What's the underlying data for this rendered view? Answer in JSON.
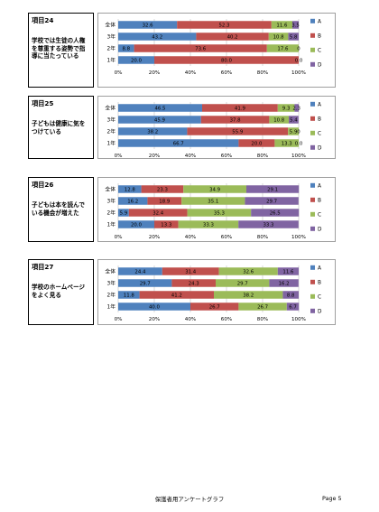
{
  "colors": {
    "A": "#4f81bd",
    "B": "#c0504d",
    "C": "#9bbb59",
    "D": "#8064a2"
  },
  "footer": {
    "title": "保護者用アンケートグラフ",
    "page": "Page 5"
  },
  "items": [
    {
      "title": "項目24",
      "text": "学校では生徒の人権を尊重する姿勢で指導に当たっている",
      "chart_data": {
        "type": "bar",
        "orientation": "horizontal",
        "stacked": "percent",
        "categories": [
          "全体",
          "3年",
          "2年",
          "1年"
        ],
        "series": [
          {
            "name": "A",
            "values": [
              32.6,
              43.2,
              8.8,
              20.0
            ]
          },
          {
            "name": "B",
            "values": [
              52.3,
              40.2,
              73.6,
              80.0
            ]
          },
          {
            "name": "C",
            "values": [
              11.6,
              10.8,
              17.6,
              0
            ]
          },
          {
            "name": "D",
            "values": [
              3.5,
              5.8,
              0,
              0
            ]
          }
        ],
        "labels": [
          [
            "32.6",
            "52.3",
            "11.6",
            "3.5"
          ],
          [
            "43.2",
            "40.2",
            "10.8",
            "5.8"
          ],
          [
            "8.8",
            "73.6",
            "17.6",
            "0"
          ],
          [
            "20.0",
            "80.0",
            "",
            "0.0"
          ]
        ],
        "xticks": [
          "0%",
          "20%",
          "40%",
          "60%",
          "80%",
          "100%"
        ],
        "xlim": [
          0,
          100
        ],
        "legend": "right"
      }
    },
    {
      "title": "項目25",
      "text": "子どもは健康に気をつけている",
      "chart_data": {
        "type": "bar",
        "orientation": "horizontal",
        "stacked": "percent",
        "categories": [
          "全体",
          "3年",
          "2年",
          "1年"
        ],
        "series": [
          {
            "name": "A",
            "values": [
              46.5,
              45.9,
              38.2,
              66.7
            ]
          },
          {
            "name": "B",
            "values": [
              41.9,
              37.8,
              55.9,
              20.0
            ]
          },
          {
            "name": "C",
            "values": [
              9.3,
              10.8,
              5.9,
              13.3
            ]
          },
          {
            "name": "D",
            "values": [
              2.3,
              5.4,
              0,
              0
            ]
          }
        ],
        "labels": [
          [
            "46.5",
            "41.9",
            "9.3",
            "2.3"
          ],
          [
            "45.9",
            "37.8",
            "10.8",
            "5.4"
          ],
          [
            "38.2",
            "55.9",
            "5.9",
            "0"
          ],
          [
            "66.7",
            "20.0",
            "13.3",
            "0.0"
          ]
        ],
        "xticks": [
          "0%",
          "20%",
          "40%",
          "60%",
          "80%",
          "100%"
        ],
        "xlim": [
          0,
          100
        ],
        "legend": "right"
      }
    },
    {
      "title": "項目26",
      "text": "子どもは本を読んでいる機会が増えた",
      "chart_data": {
        "type": "bar",
        "orientation": "horizontal",
        "stacked": "percent",
        "categories": [
          "全体",
          "3年",
          "2年",
          "1年"
        ],
        "series": [
          {
            "name": "A",
            "values": [
              12.8,
              16.2,
              5.9,
              20.0
            ]
          },
          {
            "name": "B",
            "values": [
              23.3,
              18.9,
              32.4,
              13.3
            ]
          },
          {
            "name": "C",
            "values": [
              34.9,
              35.1,
              35.3,
              33.3
            ]
          },
          {
            "name": "D",
            "values": [
              29.1,
              29.7,
              26.5,
              33.3
            ]
          }
        ],
        "labels": [
          [
            "12.8",
            "23.3",
            "34.9",
            "29.1"
          ],
          [
            "16.2",
            "18.9",
            "35.1",
            "29.7"
          ],
          [
            "5.9",
            "32.4",
            "35.3",
            "26.5"
          ],
          [
            "20.0",
            "13.3",
            "33.3",
            "33.3"
          ]
        ],
        "xticks": [
          "0%",
          "20%",
          "40%",
          "60%",
          "80%",
          "100%"
        ],
        "xlim": [
          0,
          100
        ],
        "legend": "right"
      }
    },
    {
      "title": "項目27",
      "text": "学校のホームページをよく見る",
      "chart_data": {
        "type": "bar",
        "orientation": "horizontal",
        "stacked": "percent",
        "categories": [
          "全体",
          "3年",
          "2年",
          "1年"
        ],
        "series": [
          {
            "name": "A",
            "values": [
              24.4,
              29.7,
              11.8,
              40.0
            ]
          },
          {
            "name": "B",
            "values": [
              31.4,
              24.3,
              41.2,
              26.7
            ]
          },
          {
            "name": "C",
            "values": [
              32.6,
              29.7,
              38.2,
              26.7
            ]
          },
          {
            "name": "D",
            "values": [
              11.6,
              16.2,
              8.8,
              6.7
            ]
          }
        ],
        "labels": [
          [
            "24.4",
            "31.4",
            "32.6",
            "11.6"
          ],
          [
            "29.7",
            "24.3",
            "29.7",
            "16.2"
          ],
          [
            "11.8",
            "41.2",
            "38.2",
            "8.8"
          ],
          [
            "40.0",
            "26.7",
            "26.7",
            "6.7"
          ]
        ],
        "xticks": [
          "0%",
          "20%",
          "40%",
          "60%",
          "80%",
          "100%"
        ],
        "xlim": [
          0,
          100
        ],
        "legend": "right"
      }
    }
  ]
}
